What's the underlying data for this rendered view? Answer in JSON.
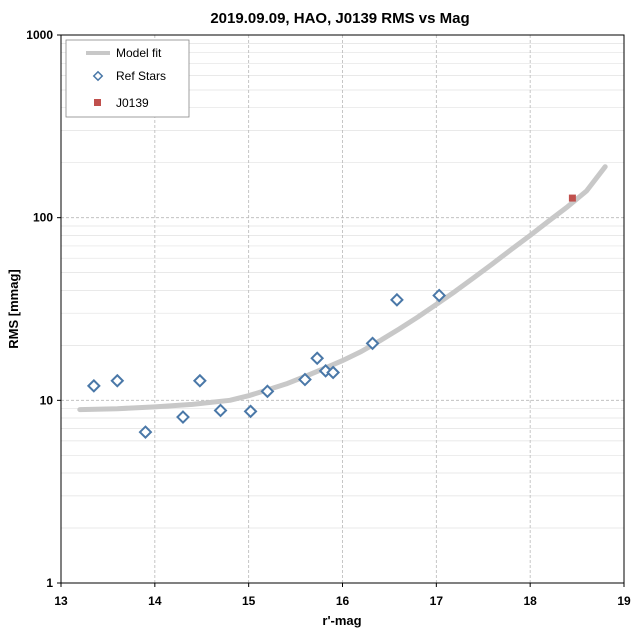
{
  "chart_data": {
    "type": "scatter",
    "title": "2019.09.09, HAO, J0139 RMS vs Mag",
    "xlabel": "r'-mag",
    "ylabel": "RMS [mmag]",
    "xlim": [
      13,
      19
    ],
    "ylim": [
      1,
      1000
    ],
    "yscale": "log",
    "x_ticks": [
      "13",
      "14",
      "15",
      "16",
      "17",
      "18",
      "19"
    ],
    "y_ticks": [
      "1",
      "10",
      "100",
      "1000"
    ],
    "grid": true,
    "legend_position": "top-left",
    "colors": {
      "model": "#c8c8c8",
      "ref": "#4a78a8",
      "target": "#c0504d"
    },
    "series": [
      {
        "name": "Model fit",
        "kind": "line",
        "x": [
          13.2,
          13.6,
          14.0,
          14.4,
          14.8,
          15.0,
          15.2,
          15.4,
          15.6,
          15.8,
          16.0,
          16.2,
          16.4,
          16.6,
          16.8,
          17.0,
          17.2,
          17.4,
          17.6,
          17.8,
          18.0,
          18.2,
          18.4,
          18.6,
          18.8
        ],
        "y": [
          8.9,
          9.0,
          9.2,
          9.5,
          10.0,
          10.6,
          11.4,
          12.3,
          13.5,
          14.9,
          16.5,
          18.5,
          21.2,
          24.5,
          28.5,
          33.5,
          39.5,
          47,
          56,
          67,
          80,
          96,
          115,
          140,
          190
        ]
      },
      {
        "name": "Ref Stars",
        "kind": "points",
        "x": [
          13.35,
          13.6,
          13.9,
          14.3,
          14.48,
          14.7,
          15.02,
          15.2,
          15.6,
          15.73,
          15.82,
          15.9,
          16.32,
          16.58,
          17.03
        ],
        "y": [
          12.0,
          12.8,
          6.7,
          8.1,
          12.8,
          8.8,
          8.7,
          11.2,
          13.0,
          17.0,
          14.5,
          14.2,
          20.5,
          35.5,
          37.5
        ]
      },
      {
        "name": "J0139",
        "kind": "points",
        "x": [
          18.45
        ],
        "y": [
          128
        ]
      }
    ]
  }
}
